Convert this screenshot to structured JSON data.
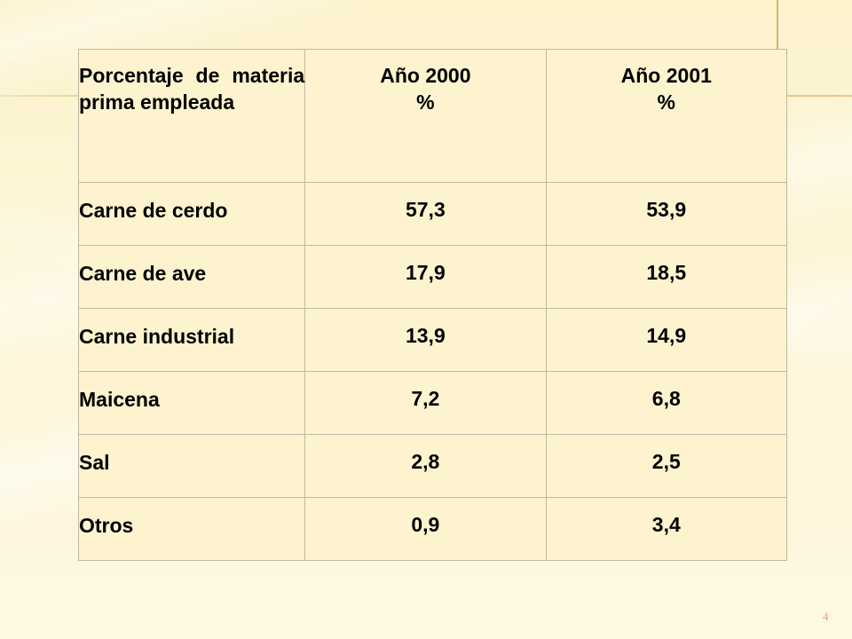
{
  "table": {
    "headers": {
      "category": "Porcentaje de materia prima empleada",
      "year_2000": "Año 2000",
      "year_2001": "Año 2001",
      "unit": "%"
    },
    "rows": [
      {
        "category": "Carne de cerdo",
        "year_2000": "57,3",
        "year_2001": "53,9"
      },
      {
        "category": "Carne de ave",
        "year_2000": "17,9",
        "year_2001": "18,5"
      },
      {
        "category": "Carne industrial",
        "year_2000": "13,9",
        "year_2001": "14,9"
      },
      {
        "category": "Maicena",
        "year_2000": "7,2",
        "year_2001": "6,8"
      },
      {
        "category": "Sal",
        "year_2000": "2,8",
        "year_2001": "2,5"
      },
      {
        "category": "Otros",
        "year_2000": "0,9",
        "year_2001": "3,4"
      }
    ]
  },
  "page_number": "4",
  "colors": {
    "background": "#fdf4d2",
    "accent_line": "#d8b46a",
    "page_number": "#e0a080"
  }
}
